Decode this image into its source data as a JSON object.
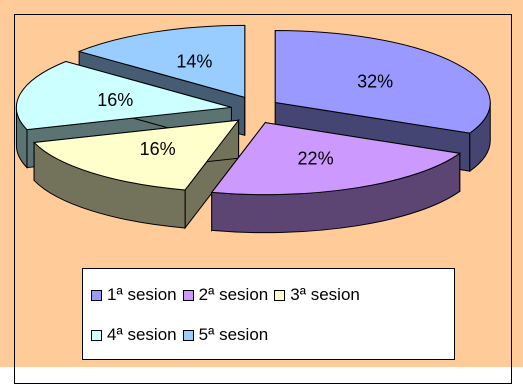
{
  "chart_data": {
    "type": "pie",
    "categories": [
      "1ª sesion",
      "2ª sesion",
      "3ª sesion",
      "4ª sesion",
      "5ª sesion"
    ],
    "values": [
      32,
      22,
      16,
      16,
      14
    ],
    "data_labels": [
      "32%",
      "22%",
      "16%",
      "16%",
      "14%"
    ],
    "colors": [
      "#9999FF",
      "#CC99FF",
      "#FFFFCC",
      "#CCFFFF",
      "#99CCFF"
    ],
    "title": "",
    "legend_position": "bottom",
    "exploded": true,
    "three_d": true
  },
  "background_color": "#FFCC99"
}
